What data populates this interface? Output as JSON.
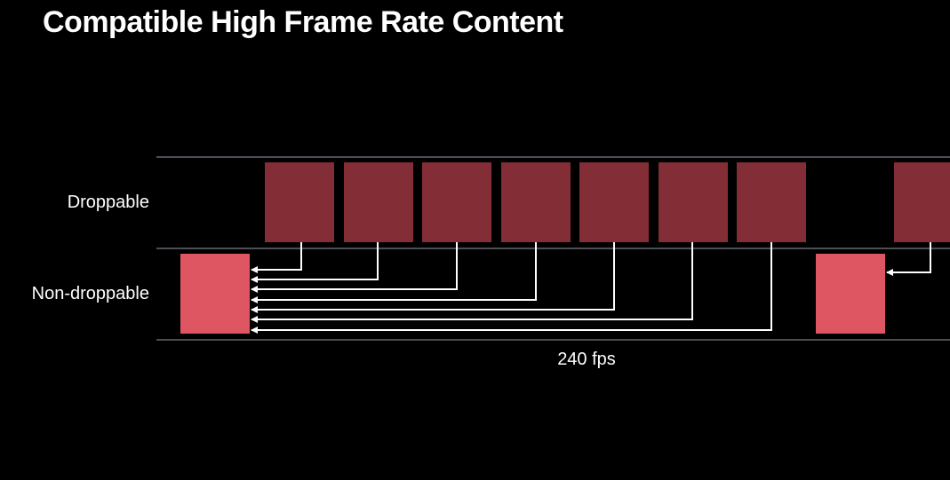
{
  "title": "Compatible High Frame Rate Content",
  "rows": {
    "droppable_label": "Droppable",
    "non_droppable_label": "Non-droppable"
  },
  "frame_rate_label": "240 fps",
  "colors": {
    "background": "#000000",
    "droppable_frame": "#832e37",
    "non_droppable_frame": "#de5661",
    "track_line": "#4a4f55",
    "arrow": "#ffffff"
  }
}
